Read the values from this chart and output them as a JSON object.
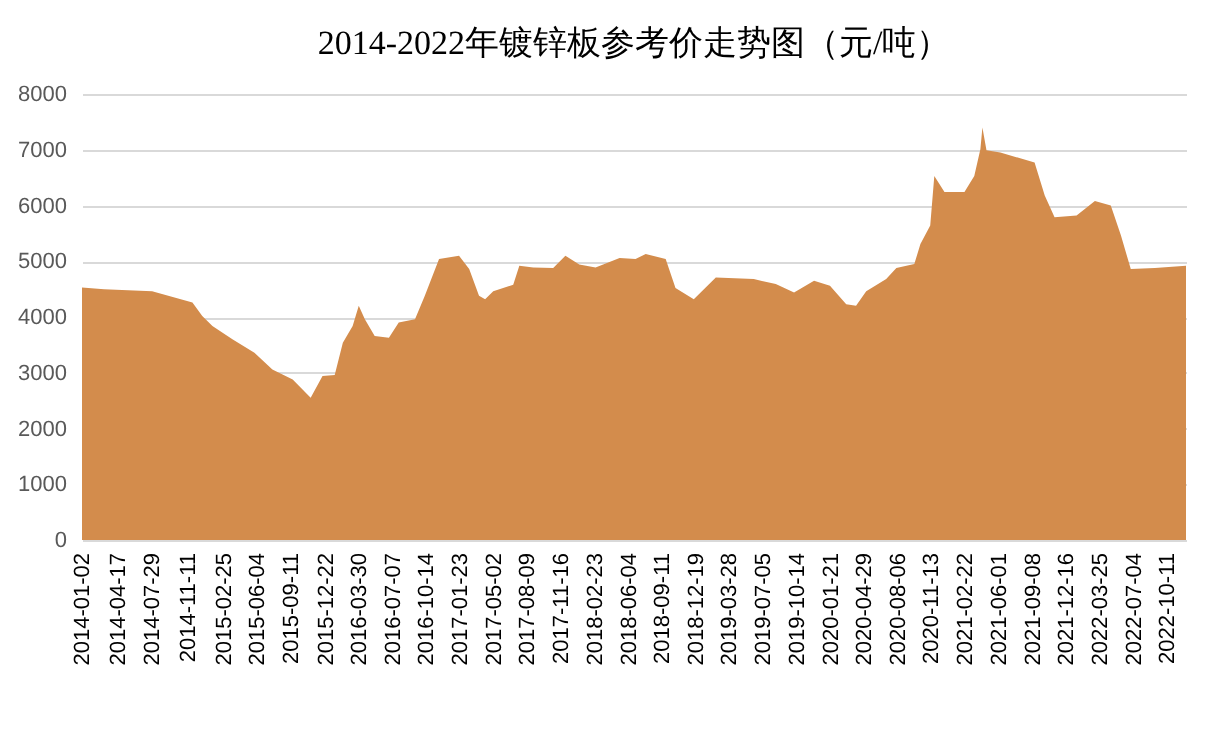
{
  "chart_data": {
    "type": "area",
    "title": "2014-2022年镀锌板参考价走势图（元/吨）",
    "x": [
      "2014-01-02",
      "2014-03-08",
      "2014-07-28",
      "2014-11-24",
      "2014-12-23",
      "2015-01-22",
      "2015-03-22",
      "2015-05-26",
      "2015-07-18",
      "2015-09-16",
      "2015-11-08",
      "2015-12-13",
      "2016-01-18",
      "2016-02-11",
      "2016-03-11",
      "2016-03-29",
      "2016-04-16",
      "2016-05-15",
      "2016-06-26",
      "2016-07-25",
      "2016-09-11",
      "2016-10-10",
      "2016-11-21",
      "2017-01-19",
      "2017-02-18",
      "2017-03-19",
      "2017-04-06",
      "2017-04-30",
      "2017-06-28",
      "2017-07-16",
      "2017-08-26",
      "2017-10-24",
      "2017-11-29",
      "2018-01-09",
      "2018-02-26",
      "2018-05-08",
      "2018-06-24",
      "2018-07-24",
      "2018-09-21",
      "2018-10-20",
      "2018-12-13",
      "2019-02-16",
      "2019-06-08",
      "2019-08-12",
      "2019-10-05",
      "2019-12-03",
      "2020-01-19",
      "2020-03-07",
      "2020-04-05",
      "2020-05-05",
      "2020-07-03",
      "2020-08-02",
      "2020-09-24",
      "2020-10-12",
      "2020-11-10",
      "2020-11-22",
      "2020-12-22",
      "2021-02-19",
      "2021-03-20",
      "2021-04-07",
      "2021-04-13",
      "2021-04-25",
      "2021-06-05",
      "2021-09-14",
      "2021-10-14",
      "2021-11-12",
      "2022-01-16",
      "2022-03-11",
      "2022-04-27",
      "2022-05-27",
      "2022-06-25",
      "2022-09-04",
      "2022-12-05"
    ],
    "series": [
      {
        "color": "#d38c4c",
        "values": [
          4530,
          4500,
          4460,
          4260,
          4020,
          3840,
          3600,
          3360,
          3060,
          2880,
          2550,
          2940,
          2960,
          3540,
          3840,
          4200,
          3960,
          3660,
          3630,
          3900,
          3960,
          4380,
          5040,
          5100,
          4860,
          4380,
          4320,
          4460,
          4580,
          4920,
          4890,
          4880,
          5100,
          4940,
          4890,
          5060,
          5040,
          5130,
          5040,
          4520,
          4320,
          4710,
          4680,
          4590,
          4440,
          4650,
          4560,
          4230,
          4200,
          4460,
          4680,
          4880,
          4950,
          5310,
          5640,
          6530,
          6240,
          6240,
          6530,
          7010,
          7400,
          6990,
          6950,
          6770,
          6180,
          5790,
          5820,
          6080,
          6000,
          5460,
          4860,
          4880,
          4920
        ]
      }
    ],
    "xlim": [
      "2014-01-02",
      "2022-12-05"
    ],
    "xticks": [
      "2014-01-02",
      "2014-04-17",
      "2014-07-29",
      "2014-11-11",
      "2015-02-25",
      "2015-06-04",
      "2015-09-11",
      "2015-12-22",
      "2016-03-30",
      "2016-07-07",
      "2016-10-14",
      "2017-01-23",
      "2017-05-02",
      "2017-08-09",
      "2017-11-16",
      "2018-02-23",
      "2018-06-04",
      "2018-09-11",
      "2018-12-19",
      "2019-03-28",
      "2019-07-05",
      "2019-10-14",
      "2020-01-21",
      "2020-04-29",
      "2020-08-06",
      "2020-11-13",
      "2021-02-22",
      "2021-06-01",
      "2021-09-08",
      "2021-12-16",
      "2022-03-25",
      "2022-07-04",
      "2022-10-11"
    ],
    "ylim": [
      0,
      8000
    ],
    "yticks": [
      0,
      1000,
      2000,
      3000,
      4000,
      5000,
      6000,
      7000,
      8000
    ],
    "grid": "y"
  }
}
